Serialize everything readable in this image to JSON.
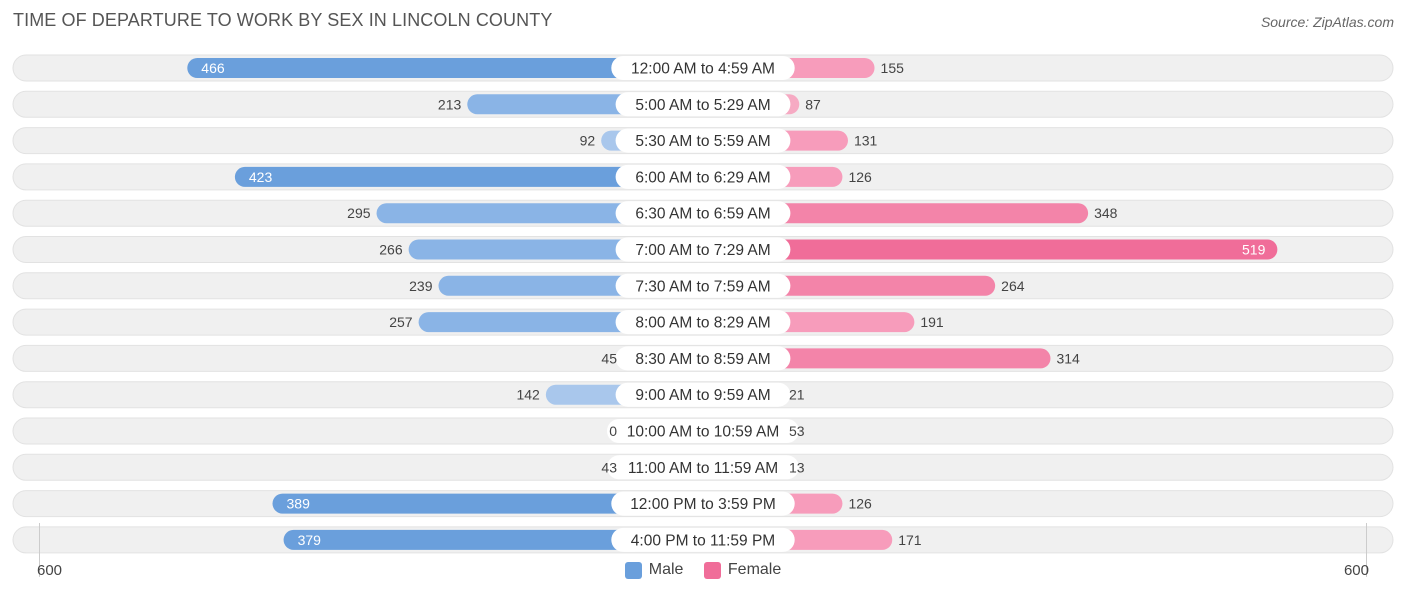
{
  "header": {
    "title": "TIME OF DEPARTURE TO WORK BY SEX IN LINCOLN COUNTY",
    "source": "Source: ZipAtlas.com"
  },
  "axis": {
    "left_label": "600",
    "right_label": "600"
  },
  "legend": {
    "male_label": "Male",
    "female_label": "Female"
  },
  "colors": {
    "male_strong": "#6a9fdc",
    "male_light": "#a9c7ec",
    "female_strong": "#f06d99",
    "female_light": "#f6aac3",
    "row_bg": "#f0f0f0"
  },
  "chart_data": {
    "type": "bar",
    "orientation": "horizontal-diverging",
    "title": "TIME OF DEPARTURE TO WORK BY SEX IN LINCOLN COUNTY",
    "xlim": [
      -600,
      600
    ],
    "categories": [
      "12:00 AM to 4:59 AM",
      "5:00 AM to 5:29 AM",
      "5:30 AM to 5:59 AM",
      "6:00 AM to 6:29 AM",
      "6:30 AM to 6:59 AM",
      "7:00 AM to 7:29 AM",
      "7:30 AM to 7:59 AM",
      "8:00 AM to 8:29 AM",
      "8:30 AM to 8:59 AM",
      "9:00 AM to 9:59 AM",
      "10:00 AM to 10:59 AM",
      "11:00 AM to 11:59 AM",
      "12:00 PM to 3:59 PM",
      "4:00 PM to 11:59 PM"
    ],
    "series": [
      {
        "name": "Male",
        "values": [
          466,
          213,
          92,
          423,
          295,
          266,
          239,
          257,
          45,
          142,
          0,
          43,
          389,
          379
        ]
      },
      {
        "name": "Female",
        "values": [
          155,
          87,
          131,
          126,
          348,
          519,
          264,
          191,
          314,
          21,
          53,
          13,
          126,
          171
        ]
      }
    ],
    "legend_position": "bottom-center"
  }
}
